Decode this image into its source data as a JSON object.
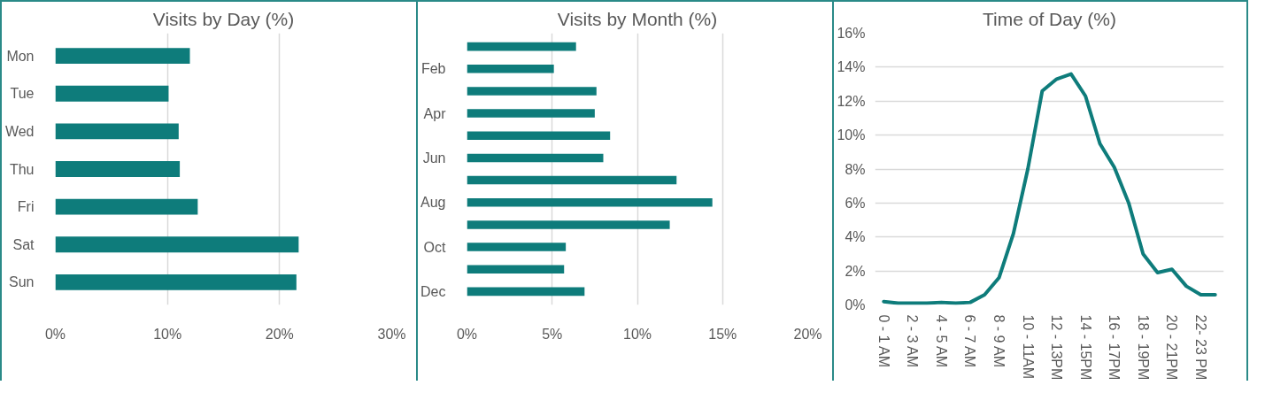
{
  "chart_data": [
    {
      "type": "bar",
      "orientation": "horizontal",
      "title": "Visits by Day (%)",
      "categories": [
        "Mon",
        "Tue",
        "Wed",
        "Thu",
        "Fri",
        "Sat",
        "Sun"
      ],
      "values": [
        12.0,
        10.1,
        11.0,
        11.1,
        12.7,
        21.7,
        21.5
      ],
      "color": "#0e7c7b",
      "xlim": [
        0,
        30
      ],
      "xticks": [
        {
          "value": 0,
          "label": "0%"
        },
        {
          "value": 10,
          "label": "10%"
        },
        {
          "value": 20,
          "label": "20%"
        },
        {
          "value": 30,
          "label": "30%"
        }
      ],
      "grid": "x"
    },
    {
      "type": "bar",
      "orientation": "horizontal",
      "title": "Visits by Month (%)",
      "categories": [
        null,
        "Feb",
        null,
        "Apr",
        null,
        "Jun",
        null,
        "Aug",
        null,
        "Oct",
        null,
        "Dec"
      ],
      "values": [
        6.4,
        5.1,
        7.6,
        7.5,
        8.4,
        8.0,
        12.3,
        14.4,
        11.9,
        5.8,
        5.7,
        6.9
      ],
      "color": "#0e7c7b",
      "xlim": [
        0,
        20
      ],
      "xticks": [
        {
          "value": 0,
          "label": "0%"
        },
        {
          "value": 5,
          "label": "5%"
        },
        {
          "value": 10,
          "label": "10%"
        },
        {
          "value": 15,
          "label": "15%"
        },
        {
          "value": 20,
          "label": "20%"
        }
      ],
      "grid": "x"
    },
    {
      "type": "line",
      "title": "Time of Day (%)",
      "categories": [
        "0 - 1 AM",
        null,
        "2 - 3 AM",
        null,
        "4 - 5 AM",
        null,
        "6 - 7 AM",
        null,
        "8 - 9 AM",
        null,
        "10 - 11AM",
        null,
        "12 - 13PM",
        null,
        "14 - 15PM",
        null,
        "16 - 17PM",
        null,
        "18 - 19PM",
        null,
        "20 - 21PM",
        null,
        "22- 23 PM",
        null
      ],
      "values": [
        0.2,
        0.1,
        0.1,
        0.1,
        0.15,
        0.1,
        0.15,
        0.6,
        1.6,
        4.2,
        8.0,
        12.6,
        13.3,
        13.6,
        12.3,
        9.5,
        8.1,
        6.0,
        3.0,
        1.9,
        2.1,
        1.1,
        0.6,
        0.6
      ],
      "color": "#0e7c7b",
      "ylim": [
        0,
        16
      ],
      "yticks": [
        {
          "value": 0,
          "label": "0%"
        },
        {
          "value": 2,
          "label": "2%"
        },
        {
          "value": 4,
          "label": "4%"
        },
        {
          "value": 6,
          "label": "6%"
        },
        {
          "value": 8,
          "label": "8%"
        },
        {
          "value": 10,
          "label": "10%"
        },
        {
          "value": 12,
          "label": "12%"
        },
        {
          "value": 14,
          "label": "14%"
        },
        {
          "value": 16,
          "label": "16%"
        }
      ],
      "grid": "y"
    }
  ]
}
